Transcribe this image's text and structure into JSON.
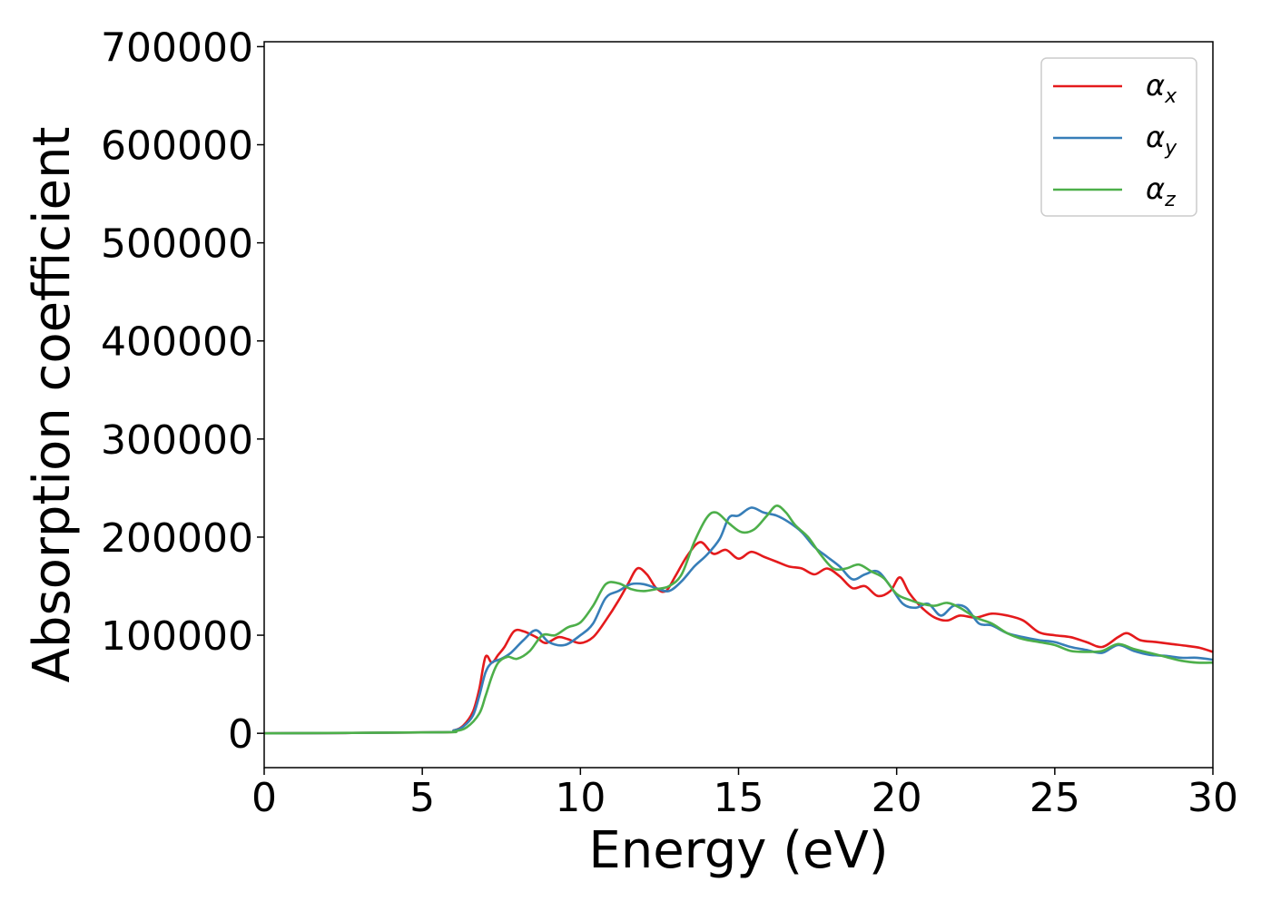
{
  "chart_data": {
    "type": "line",
    "title": "",
    "xlabel": "Energy (eV)",
    "ylabel": "Absorption coefficient",
    "xlim": [
      0,
      30
    ],
    "ylim": [
      -35000,
      705000
    ],
    "xticks": [
      0,
      5,
      10,
      15,
      20,
      25,
      30
    ],
    "xtick_labels": [
      "0",
      "5",
      "10",
      "15",
      "20",
      "25",
      "30"
    ],
    "yticks": [
      0,
      100000,
      200000,
      300000,
      400000,
      500000,
      600000,
      700000
    ],
    "ytick_labels": [
      "0",
      "100000",
      "200000",
      "300000",
      "400000",
      "500000",
      "600000",
      "700000"
    ],
    "grid": false,
    "legend_position": "top-right",
    "series": [
      {
        "name": "αx",
        "legend_base": "α",
        "legend_sub": "x",
        "color": "#e41a1c",
        "x": [
          0,
          5.5,
          6.0,
          6.3,
          6.6,
          6.8,
          7.0,
          7.2,
          7.4,
          7.6,
          7.9,
          8.2,
          8.6,
          8.9,
          9.3,
          9.6,
          10.0,
          10.4,
          10.8,
          11.2,
          11.5,
          11.8,
          12.1,
          12.4,
          12.7,
          13.0,
          13.4,
          13.8,
          14.2,
          14.6,
          15.0,
          15.4,
          15.8,
          16.2,
          16.6,
          17.0,
          17.4,
          17.8,
          18.2,
          18.6,
          19.0,
          19.4,
          19.8,
          20.1,
          20.4,
          20.8,
          21.2,
          21.6,
          22.0,
          22.5,
          23.0,
          23.5,
          24.0,
          24.5,
          25.0,
          25.5,
          26.0,
          26.5,
          27.0,
          27.3,
          27.7,
          28.2,
          28.7,
          29.2,
          29.6,
          30.0
        ],
        "y": [
          0,
          1000,
          3000,
          8000,
          22000,
          45000,
          78000,
          72000,
          80000,
          88000,
          104000,
          104000,
          98000,
          92000,
          98000,
          96000,
          92000,
          98000,
          115000,
          135000,
          152000,
          168000,
          162000,
          148000,
          145000,
          160000,
          182000,
          195000,
          183000,
          187000,
          178000,
          185000,
          180000,
          175000,
          170000,
          168000,
          162000,
          168000,
          160000,
          148000,
          150000,
          140000,
          145000,
          159000,
          143000,
          128000,
          118000,
          115000,
          120000,
          118000,
          122000,
          120000,
          115000,
          103000,
          100000,
          98000,
          93000,
          88000,
          98000,
          102000,
          95000,
          93000,
          91000,
          89000,
          87000,
          83000
        ]
      },
      {
        "name": "αy",
        "legend_base": "α",
        "legend_sub": "y",
        "color": "#377eb8",
        "x": [
          0,
          5.5,
          6.0,
          6.3,
          6.6,
          6.8,
          7.0,
          7.2,
          7.5,
          7.8,
          8.2,
          8.6,
          9.0,
          9.5,
          10.0,
          10.4,
          10.8,
          11.2,
          11.6,
          12.0,
          12.4,
          12.8,
          13.2,
          13.6,
          14.0,
          14.4,
          14.7,
          15.0,
          15.4,
          15.8,
          16.2,
          16.6,
          17.0,
          17.4,
          17.8,
          18.2,
          18.6,
          19.0,
          19.4,
          19.8,
          20.2,
          20.6,
          21.0,
          21.4,
          21.8,
          22.2,
          22.6,
          23.0,
          23.5,
          24.0,
          24.5,
          25.0,
          25.5,
          26.0,
          26.5,
          27.0,
          27.5,
          28.0,
          28.5,
          29.0,
          29.5,
          30.0
        ],
        "y": [
          0,
          1000,
          3000,
          7000,
          18000,
          38000,
          62000,
          72000,
          76000,
          82000,
          95000,
          105000,
          93000,
          90000,
          100000,
          112000,
          138000,
          145000,
          152000,
          152000,
          148000,
          145000,
          155000,
          170000,
          182000,
          198000,
          220000,
          222000,
          230000,
          225000,
          222000,
          215000,
          205000,
          190000,
          180000,
          170000,
          157000,
          162000,
          165000,
          150000,
          132000,
          128000,
          132000,
          120000,
          130000,
          128000,
          112000,
          110000,
          102000,
          98000,
          95000,
          93000,
          88000,
          85000,
          82000,
          90000,
          84000,
          80000,
          79000,
          77000,
          77000,
          75000
        ]
      },
      {
        "name": "αz",
        "legend_base": "α",
        "legend_sub": "z",
        "color": "#4daf4a",
        "x": [
          0,
          5.5,
          6.0,
          6.4,
          6.8,
          7.0,
          7.2,
          7.4,
          7.7,
          8.0,
          8.4,
          8.8,
          9.2,
          9.6,
          10.0,
          10.4,
          10.8,
          11.2,
          11.6,
          12.0,
          12.4,
          12.8,
          13.2,
          13.6,
          14.0,
          14.3,
          14.7,
          15.1,
          15.5,
          15.9,
          16.2,
          16.5,
          16.8,
          17.2,
          17.6,
          18.0,
          18.4,
          18.8,
          19.2,
          19.6,
          20.0,
          20.4,
          20.8,
          21.2,
          21.6,
          22.0,
          22.5,
          23.0,
          23.5,
          24.0,
          24.5,
          25.0,
          25.5,
          26.0,
          26.5,
          27.0,
          27.5,
          28.0,
          28.5,
          29.0,
          29.5,
          30.0
        ],
        "y": [
          0,
          1000,
          2000,
          6000,
          20000,
          38000,
          58000,
          72000,
          78000,
          76000,
          84000,
          100000,
          100000,
          108000,
          113000,
          130000,
          152000,
          153000,
          147000,
          145000,
          147000,
          150000,
          162000,
          195000,
          220000,
          225000,
          214000,
          205000,
          208000,
          222000,
          232000,
          225000,
          212000,
          200000,
          182000,
          168000,
          168000,
          172000,
          165000,
          158000,
          142000,
          136000,
          132000,
          130000,
          133000,
          128000,
          118000,
          112000,
          102000,
          96000,
          93000,
          90000,
          84000,
          83000,
          84000,
          91000,
          86000,
          82000,
          78000,
          74000,
          72000,
          72000
        ]
      }
    ]
  }
}
